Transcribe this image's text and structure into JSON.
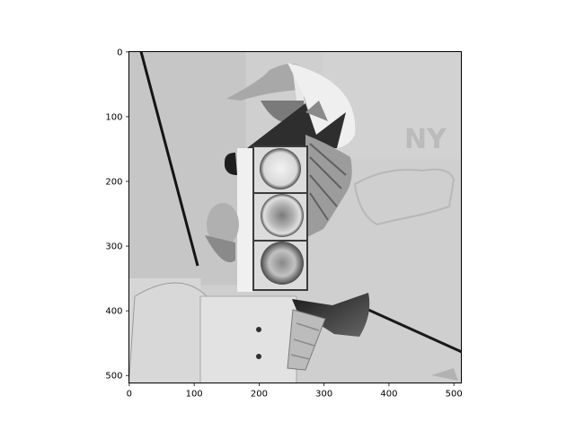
{
  "chart_data": {
    "type": "heatmap",
    "title": "",
    "xlabel": "",
    "ylabel": "",
    "xlim": [
      0,
      511
    ],
    "ylim": [
      511,
      0
    ],
    "x_ticks": [
      0,
      100,
      200,
      300,
      400,
      500
    ],
    "y_ticks": [
      0,
      100,
      200,
      300,
      400,
      500
    ],
    "colormap": "gray",
    "grid": false,
    "legend": "none",
    "image_description_elements": [
      "inverted grayscale photo",
      "figure with cap and beard",
      "traffic light with three lamps",
      "axe",
      "diagonal black line",
      "figure with buttons"
    ]
  }
}
